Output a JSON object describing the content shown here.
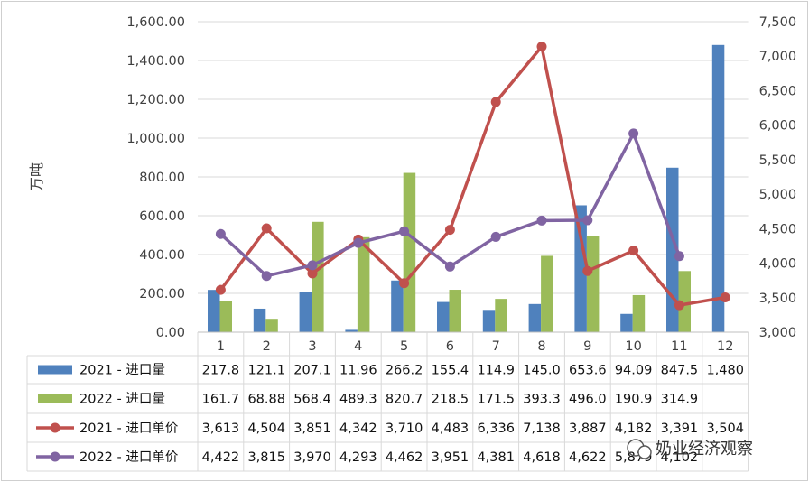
{
  "chart_data": {
    "type": "bar",
    "categories": [
      "1",
      "2",
      "3",
      "4",
      "5",
      "6",
      "7",
      "8",
      "9",
      "10",
      "11",
      "12"
    ],
    "ylabel": "万吨",
    "ylim": [
      0,
      1600
    ],
    "y_ticks": [
      "0.00",
      "200.00",
      "400.00",
      "600.00",
      "800.00",
      "1,000.00",
      "1,200.00",
      "1,400.00",
      "1,600.00"
    ],
    "y2lim": [
      3000,
      7500
    ],
    "y2_ticks": [
      "3,000",
      "3,500",
      "4,000",
      "4,500",
      "5,000",
      "5,500",
      "6,000",
      "6,500",
      "7,000",
      "7,500"
    ],
    "legend_placement": "data table below plot",
    "series": [
      {
        "name": "2021 - 进口量",
        "kind": "bar",
        "axis": "left",
        "color": "#4f81bd",
        "values": [
          217.8,
          121.1,
          207.1,
          11.96,
          266.2,
          155.4,
          114.9,
          145.0,
          653.6,
          94.09,
          847.5,
          1480
        ],
        "labels": [
          "217.8",
          "121.1",
          "207.1",
          "11.96",
          "266.2",
          "155.4",
          "114.9",
          "145.0",
          "653.6",
          "94.09",
          "847.5",
          "1,480"
        ]
      },
      {
        "name": "2022 - 进口量",
        "kind": "bar",
        "axis": "left",
        "color": "#9bbb59",
        "values": [
          161.7,
          68.88,
          568.4,
          489.3,
          820.7,
          218.5,
          171.5,
          393.3,
          496.0,
          190.9,
          314.9,
          null
        ],
        "labels": [
          "161.7",
          "68.88",
          "568.4",
          "489.3",
          "820.7",
          "218.5",
          "171.5",
          "393.3",
          "496.0",
          "190.9",
          "314.9",
          ""
        ]
      },
      {
        "name": "2021 - 进口单价",
        "kind": "line",
        "axis": "right",
        "color": "#c0504d",
        "values": [
          3613,
          4504,
          3851,
          4342,
          3710,
          4483,
          6336,
          7138,
          3887,
          4182,
          3391,
          3504
        ],
        "labels": [
          "3,613",
          "4,504",
          "3,851",
          "4,342",
          "3,710",
          "4,483",
          "6,336",
          "7,138",
          "3,887",
          "4,182",
          "3,391",
          "3,504"
        ]
      },
      {
        "name": "2022 - 进口单价",
        "kind": "line",
        "axis": "right",
        "color": "#8064a2",
        "values": [
          4422,
          3815,
          3970,
          4293,
          4462,
          3951,
          4381,
          4618,
          4622,
          5879,
          4102,
          null
        ],
        "labels": [
          "4,422",
          "3,815",
          "3,970",
          "4,293",
          "4,462",
          "3,951",
          "4,381",
          "4,618",
          "4,622",
          "5,879",
          "4,102",
          ""
        ]
      }
    ]
  },
  "watermark": {
    "text": "奶业经济观察"
  }
}
